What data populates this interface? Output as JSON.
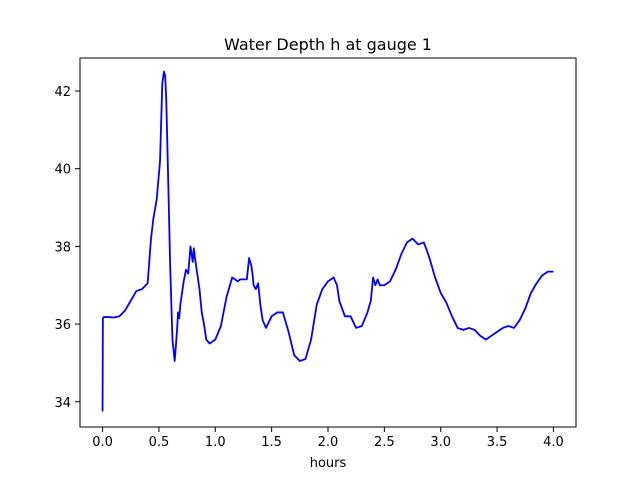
{
  "chart_data": {
    "type": "line",
    "title": "Water Depth h at gauge 1",
    "xlabel": "hours",
    "ylabel": "",
    "xlim": [
      -0.2,
      4.2
    ],
    "ylim": [
      33.35,
      42.85
    ],
    "xticks": [
      0.0,
      0.5,
      1.0,
      1.5,
      2.0,
      2.5,
      3.0,
      3.5,
      4.0
    ],
    "xtick_labels": [
      "0.0",
      "0.5",
      "1.0",
      "1.5",
      "2.0",
      "2.5",
      "3.0",
      "3.5",
      "4.0"
    ],
    "yticks": [
      34,
      36,
      38,
      40,
      42
    ],
    "ytick_labels": [
      "34",
      "36",
      "38",
      "40",
      "42"
    ],
    "grid": false,
    "line_color": "#0000ff",
    "series": [
      {
        "x": [
          0.0,
          0.003,
          0.01,
          0.05,
          0.1,
          0.15,
          0.2,
          0.25,
          0.3,
          0.35,
          0.4,
          0.43,
          0.45,
          0.48,
          0.51,
          0.53,
          0.545,
          0.555,
          0.565,
          0.58,
          0.6,
          0.62,
          0.64,
          0.66,
          0.67,
          0.68,
          0.69,
          0.7,
          0.72,
          0.74,
          0.76,
          0.78,
          0.8,
          0.81,
          0.82,
          0.84,
          0.86,
          0.88,
          0.9,
          0.92,
          0.95,
          1.0,
          1.05,
          1.1,
          1.15,
          1.2,
          1.22,
          1.25,
          1.28,
          1.3,
          1.32,
          1.33,
          1.34,
          1.36,
          1.38,
          1.4,
          1.42,
          1.45,
          1.5,
          1.55,
          1.6,
          1.65,
          1.7,
          1.75,
          1.8,
          1.85,
          1.9,
          1.95,
          2.0,
          2.05,
          2.08,
          2.1,
          2.15,
          2.2,
          2.25,
          2.3,
          2.35,
          2.38,
          2.4,
          2.42,
          2.44,
          2.46,
          2.5,
          2.55,
          2.6,
          2.65,
          2.7,
          2.75,
          2.8,
          2.85,
          2.87,
          2.9,
          2.95,
          3.0,
          3.05,
          3.1,
          3.15,
          3.2,
          3.25,
          3.3,
          3.35,
          3.4,
          3.45,
          3.5,
          3.55,
          3.6,
          3.65,
          3.7,
          3.75,
          3.8,
          3.85,
          3.9,
          3.95,
          4.0
        ],
        "values": [
          33.75,
          36.15,
          36.18,
          36.18,
          36.17,
          36.2,
          36.35,
          36.6,
          36.85,
          36.9,
          37.05,
          38.2,
          38.7,
          39.2,
          40.2,
          42.2,
          42.5,
          42.4,
          41.8,
          40.0,
          37.5,
          35.6,
          35.05,
          35.8,
          36.3,
          36.15,
          36.5,
          36.7,
          37.1,
          37.4,
          37.3,
          38.0,
          37.6,
          37.95,
          37.7,
          37.3,
          36.9,
          36.3,
          36.0,
          35.6,
          35.5,
          35.6,
          35.95,
          36.7,
          37.2,
          37.1,
          37.15,
          37.15,
          37.15,
          37.7,
          37.5,
          37.3,
          37.0,
          36.9,
          37.05,
          36.5,
          36.1,
          35.9,
          36.2,
          36.3,
          36.3,
          35.8,
          35.2,
          35.05,
          35.1,
          35.6,
          36.5,
          36.9,
          37.1,
          37.2,
          37.0,
          36.6,
          36.2,
          36.2,
          35.9,
          35.95,
          36.3,
          36.6,
          37.2,
          37.0,
          37.15,
          37.0,
          37.0,
          37.1,
          37.4,
          37.8,
          38.1,
          38.2,
          38.05,
          38.1,
          37.95,
          37.7,
          37.2,
          36.8,
          36.55,
          36.2,
          35.9,
          35.85,
          35.9,
          35.85,
          35.7,
          35.6,
          35.7,
          35.8,
          35.9,
          35.95,
          35.9,
          36.1,
          36.4,
          36.8,
          37.05,
          37.25,
          37.35,
          37.35
        ]
      }
    ]
  }
}
